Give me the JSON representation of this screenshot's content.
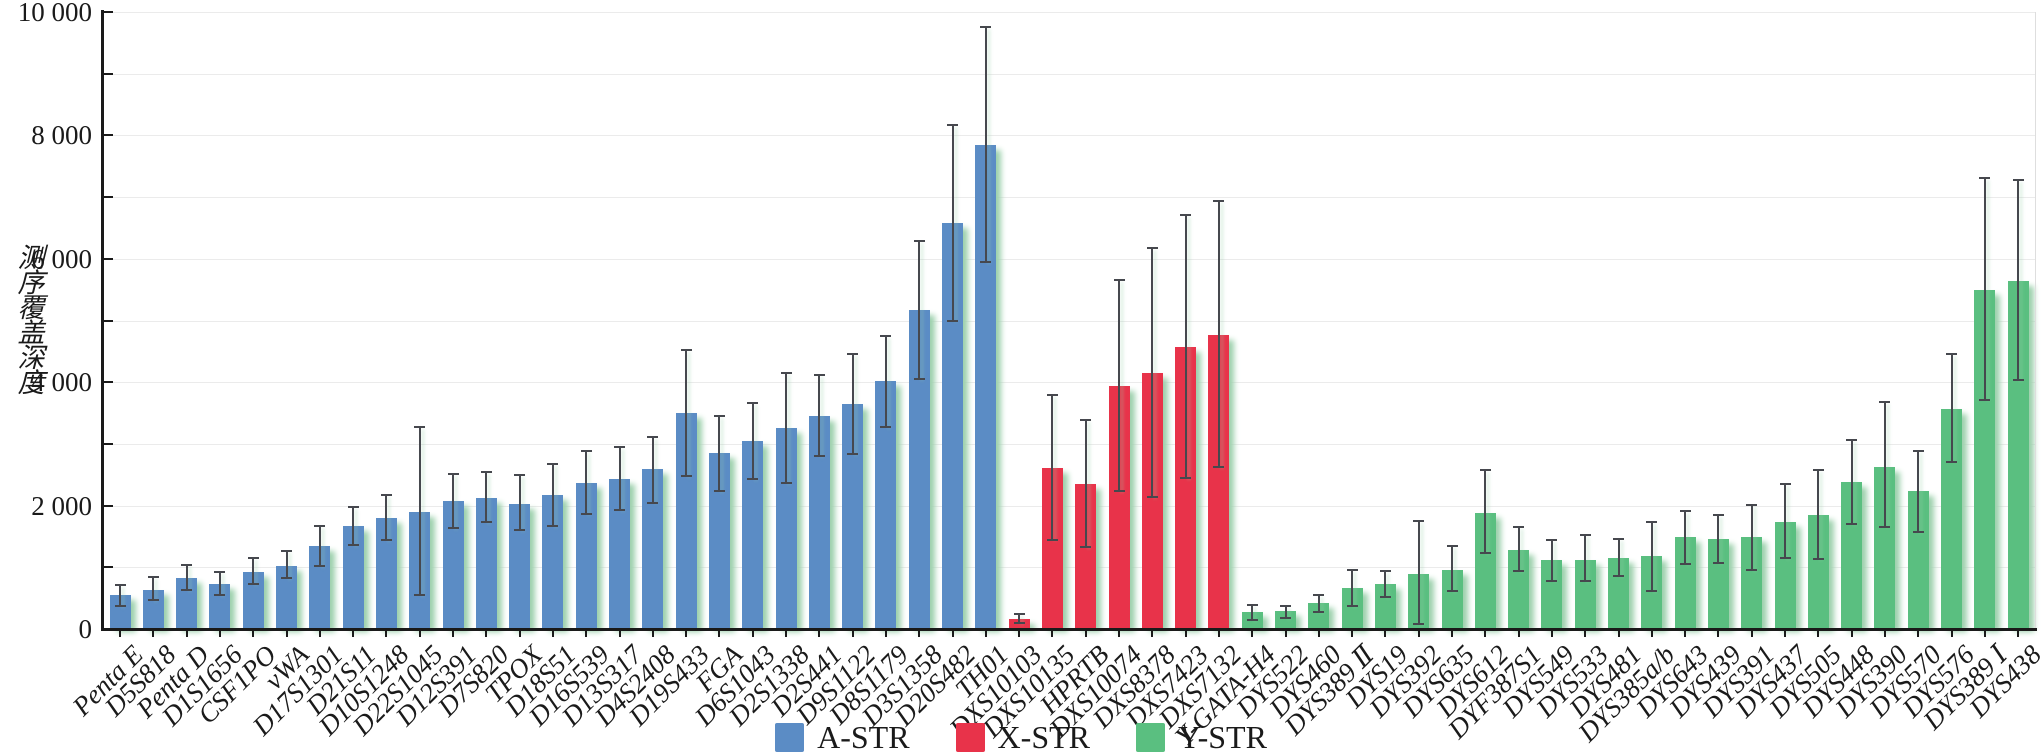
{
  "y_axis": {
    "title": "测序覆盖深度",
    "tick_labels": [
      "0",
      "2 000",
      "4 000",
      "6 000",
      "8 000",
      "10 000"
    ]
  },
  "legend": {
    "items": [
      {
        "label": "A-STR",
        "color": "#5b8cc5"
      },
      {
        "label": "X-STR",
        "color": "#e8334a"
      },
      {
        "label": "Y-STR",
        "color": "#5abf80"
      }
    ]
  },
  "chart_data": {
    "type": "bar",
    "title": "",
    "xlabel": "",
    "ylabel": "测序覆盖深度",
    "ylim": [
      0,
      10000
    ],
    "y_major_tick_step": 2000,
    "y_minor_tick_step": 1000,
    "y_tick_labels": [
      "0",
      "2 000",
      "4 000",
      "6 000",
      "8 000",
      "10 000"
    ],
    "grid": "horizontal gridlines every 1000",
    "legend_position": "bottom-center",
    "error_bars": "whisker_low / whisker_high are absolute depth values",
    "error_bar_color": "#46484e",
    "bar_shadow_color": "#9cd0ac",
    "groups": [
      {
        "name": "A-STR",
        "color": "#5b8cc5"
      },
      {
        "name": "X-STR",
        "color": "#e8334a"
      },
      {
        "name": "Y-STR",
        "color": "#5abf80"
      }
    ],
    "bars": [
      {
        "label": "Penta E",
        "group": "A-STR",
        "value": 545,
        "whisker_low": 370,
        "whisker_high": 720
      },
      {
        "label": "D5S818",
        "group": "A-STR",
        "value": 640,
        "whisker_low": 465,
        "whisker_high": 845
      },
      {
        "label": "Penta D",
        "group": "A-STR",
        "value": 820,
        "whisker_low": 625,
        "whisker_high": 1035
      },
      {
        "label": "D1S1656",
        "group": "A-STR",
        "value": 735,
        "whisker_low": 545,
        "whisker_high": 925
      },
      {
        "label": "CSF1PO",
        "group": "A-STR",
        "value": 925,
        "whisker_low": 735,
        "whisker_high": 1145
      },
      {
        "label": "vWA",
        "group": "A-STR",
        "value": 1020,
        "whisker_low": 830,
        "whisker_high": 1265
      },
      {
        "label": "D17S1301",
        "group": "A-STR",
        "value": 1345,
        "whisker_low": 1025,
        "whisker_high": 1675
      },
      {
        "label": "D21S11",
        "group": "A-STR",
        "value": 1670,
        "whisker_low": 1360,
        "whisker_high": 1980
      },
      {
        "label": "D10S1248",
        "group": "A-STR",
        "value": 1800,
        "whisker_low": 1445,
        "whisker_high": 2180
      },
      {
        "label": "D22S1045",
        "group": "A-STR",
        "value": 1895,
        "whisker_low": 545,
        "whisker_high": 3270
      },
      {
        "label": "D12S391",
        "group": "A-STR",
        "value": 2080,
        "whisker_low": 1635,
        "whisker_high": 2520
      },
      {
        "label": "D7S820",
        "group": "A-STR",
        "value": 2120,
        "whisker_low": 1730,
        "whisker_high": 2550
      },
      {
        "label": "TPOX",
        "group": "A-STR",
        "value": 2030,
        "whisker_low": 1605,
        "whisker_high": 2490
      },
      {
        "label": "D18S51",
        "group": "A-STR",
        "value": 2165,
        "whisker_low": 1675,
        "whisker_high": 2670
      },
      {
        "label": "D16S539",
        "group": "A-STR",
        "value": 2370,
        "whisker_low": 1860,
        "whisker_high": 2885
      },
      {
        "label": "D13S317",
        "group": "A-STR",
        "value": 2440,
        "whisker_low": 1935,
        "whisker_high": 2945
      },
      {
        "label": "D4S2408",
        "group": "A-STR",
        "value": 2600,
        "whisker_low": 2050,
        "whisker_high": 3115
      },
      {
        "label": "D19S433",
        "group": "A-STR",
        "value": 3500,
        "whisker_low": 2485,
        "whisker_high": 4525
      },
      {
        "label": "FGA",
        "group": "A-STR",
        "value": 2855,
        "whisker_low": 2240,
        "whisker_high": 3460
      },
      {
        "label": "D6S1043",
        "group": "A-STR",
        "value": 3045,
        "whisker_low": 2425,
        "whisker_high": 3660
      },
      {
        "label": "D2S1338",
        "group": "A-STR",
        "value": 3260,
        "whisker_low": 2370,
        "whisker_high": 4150
      },
      {
        "label": "D2S441",
        "group": "A-STR",
        "value": 3460,
        "whisker_low": 2810,
        "whisker_high": 4120
      },
      {
        "label": "D9S1122",
        "group": "A-STR",
        "value": 3650,
        "whisker_low": 2840,
        "whisker_high": 4465
      },
      {
        "label": "D8S1179",
        "group": "A-STR",
        "value": 4015,
        "whisker_low": 3275,
        "whisker_high": 4755
      },
      {
        "label": "D3S1358",
        "group": "A-STR",
        "value": 5170,
        "whisker_low": 4055,
        "whisker_high": 6290
      },
      {
        "label": "D20S482",
        "group": "A-STR",
        "value": 6580,
        "whisker_low": 5000,
        "whisker_high": 8170
      },
      {
        "label": "TH01",
        "group": "A-STR",
        "value": 7840,
        "whisker_low": 5945,
        "whisker_high": 9755
      },
      {
        "label": "DXS10103",
        "group": "X-STR",
        "value": 170,
        "whisker_low": 95,
        "whisker_high": 245
      },
      {
        "label": "DXS10135",
        "group": "X-STR",
        "value": 2605,
        "whisker_low": 1450,
        "whisker_high": 3795
      },
      {
        "label": "HPRTB",
        "group": "X-STR",
        "value": 2350,
        "whisker_low": 1325,
        "whisker_high": 3395
      },
      {
        "label": "DXS10074",
        "group": "X-STR",
        "value": 3945,
        "whisker_low": 2245,
        "whisker_high": 5665
      },
      {
        "label": "DXS8378",
        "group": "X-STR",
        "value": 4150,
        "whisker_low": 2135,
        "whisker_high": 6180
      },
      {
        "label": "DXS7423",
        "group": "X-STR",
        "value": 4565,
        "whisker_low": 2445,
        "whisker_high": 6715
      },
      {
        "label": "DXS7132",
        "group": "X-STR",
        "value": 4770,
        "whisker_low": 2620,
        "whisker_high": 6930
      },
      {
        "label": "Y-GATA-H4",
        "group": "Y-STR",
        "value": 280,
        "whisker_low": 145,
        "whisker_high": 395
      },
      {
        "label": "DYS522",
        "group": "Y-STR",
        "value": 295,
        "whisker_low": 180,
        "whisker_high": 375
      },
      {
        "label": "DYS460",
        "group": "Y-STR",
        "value": 420,
        "whisker_low": 275,
        "whisker_high": 555
      },
      {
        "label": "DYS389 Ⅱ",
        "group": "Y-STR",
        "value": 665,
        "whisker_low": 380,
        "whisker_high": 960
      },
      {
        "label": "DYS19",
        "group": "Y-STR",
        "value": 730,
        "whisker_low": 515,
        "whisker_high": 935
      },
      {
        "label": "DYS392",
        "group": "Y-STR",
        "value": 900,
        "whisker_low": 80,
        "whisker_high": 1745
      },
      {
        "label": "DYS635",
        "group": "Y-STR",
        "value": 960,
        "whisker_low": 610,
        "whisker_high": 1350
      },
      {
        "label": "DYS612",
        "group": "Y-STR",
        "value": 1875,
        "whisker_low": 1230,
        "whisker_high": 2570
      },
      {
        "label": "DYF387S1",
        "group": "Y-STR",
        "value": 1285,
        "whisker_low": 935,
        "whisker_high": 1660
      },
      {
        "label": "DYS549",
        "group": "Y-STR",
        "value": 1120,
        "whisker_low": 785,
        "whisker_high": 1445
      },
      {
        "label": "DYS533",
        "group": "Y-STR",
        "value": 1125,
        "whisker_low": 775,
        "whisker_high": 1525
      },
      {
        "label": "DYS481",
        "group": "Y-STR",
        "value": 1145,
        "whisker_low": 865,
        "whisker_high": 1460
      },
      {
        "label": "DYS385a/b",
        "group": "Y-STR",
        "value": 1180,
        "whisker_low": 620,
        "whisker_high": 1730
      },
      {
        "label": "DYS643",
        "group": "Y-STR",
        "value": 1485,
        "whisker_low": 1055,
        "whisker_high": 1920
      },
      {
        "label": "DYS439",
        "group": "Y-STR",
        "value": 1460,
        "whisker_low": 1070,
        "whisker_high": 1855
      },
      {
        "label": "DYS391",
        "group": "Y-STR",
        "value": 1485,
        "whisker_low": 955,
        "whisker_high": 2010
      },
      {
        "label": "DYS437",
        "group": "Y-STR",
        "value": 1730,
        "whisker_low": 1145,
        "whisker_high": 2350
      },
      {
        "label": "DYS505",
        "group": "Y-STR",
        "value": 1850,
        "whisker_low": 1135,
        "whisker_high": 2580
      },
      {
        "label": "DYS448",
        "group": "Y-STR",
        "value": 2380,
        "whisker_low": 1705,
        "whisker_high": 3065
      },
      {
        "label": "DYS390",
        "group": "Y-STR",
        "value": 2630,
        "whisker_low": 1660,
        "whisker_high": 3685
      },
      {
        "label": "DYS570",
        "group": "Y-STR",
        "value": 2230,
        "whisker_low": 1570,
        "whisker_high": 2890
      },
      {
        "label": "DYS576",
        "group": "Y-STR",
        "value": 3560,
        "whisker_low": 2715,
        "whisker_high": 4460
      },
      {
        "label": "DYS389 Ⅰ",
        "group": "Y-STR",
        "value": 5500,
        "whisker_low": 3720,
        "whisker_high": 7305
      },
      {
        "label": "DYS438",
        "group": "Y-STR",
        "value": 5635,
        "whisker_low": 4035,
        "whisker_high": 7285
      }
    ]
  }
}
